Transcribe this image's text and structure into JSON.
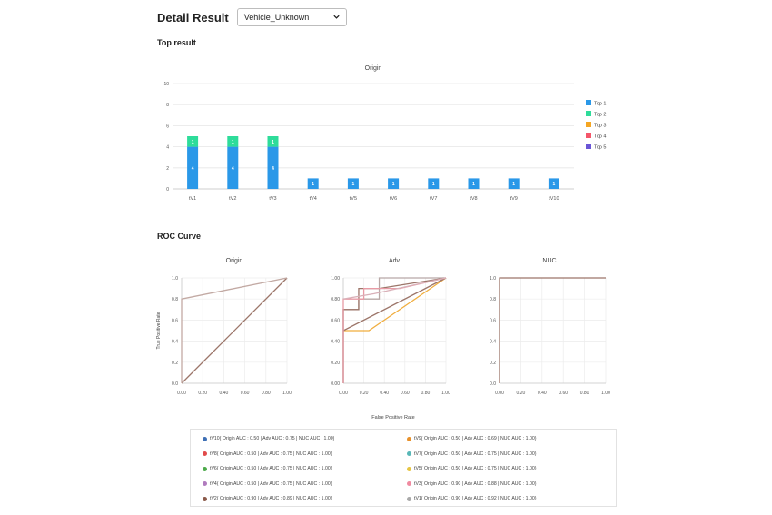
{
  "header": {
    "title": "Detail Result",
    "select_value": "Vehicle_Unknown"
  },
  "sections": {
    "top_result": "Top result",
    "roc_curve": "ROC Curve"
  },
  "colors": {
    "top1": "#2a98e8",
    "top2": "#2edc9a",
    "top3": "#f5a623",
    "top4": "#f4566a",
    "top5": "#6a55d6",
    "roc_line": "#9c7569",
    "diag": "#9c7569"
  },
  "chart_data": [
    {
      "type": "bar",
      "title": "Origin",
      "categories": [
        "tV1",
        "tV2",
        "tV3",
        "tV4",
        "tV5",
        "tV6",
        "tV7",
        "tV8",
        "tV9",
        "tV10"
      ],
      "series": [
        {
          "name": "Top 1",
          "values": [
            4,
            4,
            4,
            1,
            1,
            1,
            1,
            1,
            1,
            1
          ]
        },
        {
          "name": "Top 2",
          "values": [
            1,
            1,
            1,
            0,
            0,
            0,
            0,
            0,
            0,
            0
          ]
        },
        {
          "name": "Top 3",
          "values": [
            0,
            0,
            0,
            0,
            0,
            0,
            0,
            0,
            0,
            0
          ]
        },
        {
          "name": "Top 4",
          "values": [
            0,
            0,
            0,
            0,
            0,
            0,
            0,
            0,
            0,
            0
          ]
        },
        {
          "name": "Top 5",
          "values": [
            0,
            0,
            0,
            0,
            0,
            0,
            0,
            0,
            0,
            0
          ]
        }
      ],
      "stacked": true,
      "yticks": [
        "0",
        "2",
        "4",
        "6",
        "8",
        "10"
      ],
      "ylim": [
        0,
        10
      ],
      "grid": true,
      "legend": "right"
    },
    {
      "type": "line",
      "title": "Origin",
      "ylabel": "True Positive Rate",
      "xlim": [
        0,
        1
      ],
      "ylim": [
        0,
        1
      ],
      "xticks": [
        "0.00",
        "0.20",
        "0.40",
        "0.60",
        "0.80",
        "1.00"
      ],
      "yticks": [
        "0.0",
        "0.2",
        "0.4",
        "0.6",
        "0.8",
        "1.0"
      ],
      "series": [
        {
          "points": [
            [
              0,
              0
            ],
            [
              1,
              1
            ]
          ],
          "color": "#9c7569"
        },
        {
          "points": [
            [
              0,
              0
            ],
            [
              0,
              0.8
            ],
            [
              1,
              1
            ]
          ],
          "color": "#c2a9a3"
        }
      ]
    },
    {
      "type": "line",
      "title": "Adv",
      "xlim": [
        0,
        1
      ],
      "ylim": [
        0,
        1
      ],
      "xticks": [
        "0.00",
        "0.20",
        "0.40",
        "0.60",
        "0.80",
        "1.00"
      ],
      "yticks": [
        "0.00",
        "0.20",
        "0.40",
        "0.60",
        "0.80",
        "1.00"
      ],
      "series": [
        {
          "points": [
            [
              0,
              0.5
            ],
            [
              0.25,
              0.5
            ],
            [
              1,
              1
            ]
          ],
          "color": "#f0ad3e"
        },
        {
          "points": [
            [
              0,
              0.5
            ],
            [
              1,
              1
            ]
          ],
          "color": "#9c7569"
        },
        {
          "points": [
            [
              0,
              0
            ],
            [
              0,
              0.7
            ],
            [
              0.15,
              0.7
            ],
            [
              0.15,
              0.8
            ],
            [
              0.35,
              0.8
            ],
            [
              0.35,
              1
            ],
            [
              1,
              1
            ]
          ],
          "color": "#b8a8a6"
        },
        {
          "points": [
            [
              0,
              0
            ],
            [
              0,
              0.7
            ],
            [
              0.15,
              0.7
            ],
            [
              0.15,
              0.9
            ],
            [
              0.35,
              0.9
            ],
            [
              1,
              1
            ]
          ],
          "color": "#9c7569"
        },
        {
          "points": [
            [
              0,
              0
            ],
            [
              0,
              0.8
            ],
            [
              0.2,
              0.8
            ],
            [
              0.2,
              0.9
            ],
            [
              0.55,
              0.9
            ],
            [
              1,
              1
            ]
          ],
          "color": "#e89aa5"
        },
        {
          "points": [
            [
              0,
              0.8
            ],
            [
              0.3,
              0.85
            ],
            [
              1,
              1
            ]
          ],
          "color": "#d9b0b8"
        }
      ]
    },
    {
      "type": "line",
      "title": "NUC",
      "xlim": [
        0,
        1
      ],
      "ylim": [
        0,
        1
      ],
      "xticks": [
        "0.00",
        "0.20",
        "0.40",
        "0.60",
        "0.80",
        "1.00"
      ],
      "yticks": [
        "0.0",
        "0.2",
        "0.4",
        "0.6",
        "0.8",
        "1.0"
      ],
      "series": [
        {
          "points": [
            [
              0,
              0
            ],
            [
              0,
              1
            ],
            [
              1,
              1
            ]
          ],
          "color": "#9c7569"
        }
      ]
    }
  ],
  "roc_xlabel": "False Positive Rate",
  "roc_legend": [
    {
      "label": "tV10( Origin AUC : 0.50 | Adv AUC : 0.75 | NUC AUC : 1.00)",
      "color": "#3e6fb5"
    },
    {
      "label": "tV9( Origin AUC : 0.50 | Adv AUC : 0.69 | NUC AUC : 1.00)",
      "color": "#e8912b"
    },
    {
      "label": "tV8( Origin AUC : 0.50 | Adv AUC : 0.75 | NUC AUC : 1.00)",
      "color": "#e14b4b"
    },
    {
      "label": "tV7( Origin AUC : 0.50 | Adv AUC : 0.75 | NUC AUC : 1.00)",
      "color": "#58b7b7"
    },
    {
      "label": "tV6( Origin AUC : 0.50 | Adv AUC : 0.75 | NUC AUC : 1.00)",
      "color": "#4caa4a"
    },
    {
      "label": "tV5( Origin AUC : 0.50 | Adv AUC : 0.75 | NUC AUC : 1.00)",
      "color": "#e6c542"
    },
    {
      "label": "tV4( Origin AUC : 0.50 | Adv AUC : 0.75 | NUC AUC : 1.00)",
      "color": "#b07bbe"
    },
    {
      "label": "tV3( Origin AUC : 0.90 | Adv AUC : 0.88 | NUC AUC : 1.00)",
      "color": "#f08aa0"
    },
    {
      "label": "tV2( Origin AUC : 0.90 | Adv AUC : 0.89 | NUC AUC : 1.00)",
      "color": "#8b5a4a"
    },
    {
      "label": "tV1( Origin AUC : 0.90 | Adv AUC : 0.92 | NUC AUC : 1.00)",
      "color": "#a9a9a9"
    }
  ]
}
